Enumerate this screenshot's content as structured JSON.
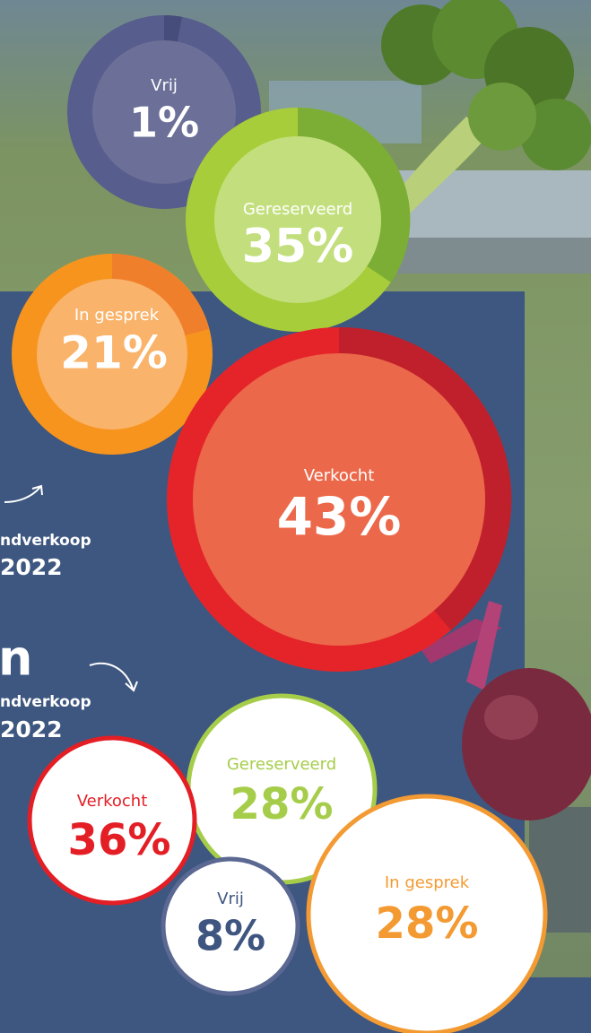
{
  "side_texts": {
    "first": {
      "line1": "ndverkoop",
      "line2": "2022"
    },
    "second": {
      "head": "n",
      "line1": "ndverkoop",
      "line2": "2022"
    }
  },
  "top_group": [
    {
      "label": "Vrij",
      "value": "1%"
    },
    {
      "label": "Gereserveerd",
      "value": "35%"
    },
    {
      "label": "In gesprek",
      "value": "21%"
    },
    {
      "label": "Verkocht",
      "value": "43%"
    }
  ],
  "bottom_group": [
    {
      "label": "Verkocht",
      "value": "36%"
    },
    {
      "label": "Gereserveerd",
      "value": "28%"
    },
    {
      "label": "Vrij",
      "value": "8%"
    },
    {
      "label": "In gesprek",
      "value": "28%"
    }
  ]
}
